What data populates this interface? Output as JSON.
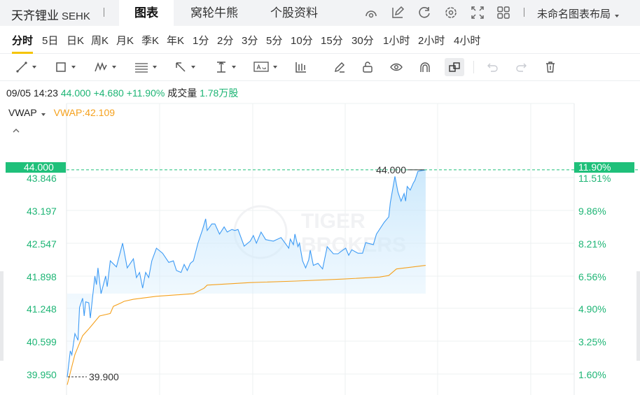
{
  "header": {
    "stock_name": "天齐锂业",
    "exchange": "SEHK",
    "tabs": [
      {
        "label": "图表",
        "active": true
      },
      {
        "label": "窝轮牛熊",
        "active": false
      },
      {
        "label": "个股资料",
        "active": false
      }
    ],
    "icons": [
      "speedometer-icon",
      "edit-icon",
      "refresh-icon",
      "settings-icon",
      "fullscreen-icon",
      "grid-layout-icon"
    ],
    "layout_label": "未命名图表布局"
  },
  "periods": [
    {
      "label": "分时",
      "active": true
    },
    {
      "label": "5日"
    },
    {
      "label": "日K"
    },
    {
      "label": "周K"
    },
    {
      "label": "月K"
    },
    {
      "label": "季K"
    },
    {
      "label": "年K"
    },
    {
      "label": "1分"
    },
    {
      "label": "2分"
    },
    {
      "label": "3分"
    },
    {
      "label": "5分"
    },
    {
      "label": "10分"
    },
    {
      "label": "15分"
    },
    {
      "label": "30分"
    },
    {
      "label": "1小时"
    },
    {
      "label": "2小时"
    },
    {
      "label": "4小时"
    }
  ],
  "toolbar": [
    "line-tool-icon",
    "rectangle-tool-icon",
    "pattern-tool-icon",
    "fibonacci-tool-icon",
    "arrow-tool-icon",
    "measure-tool-icon",
    "text-tool-icon",
    "candle-indicator-icon",
    "pencil-icon",
    "unlock-icon",
    "eye-icon",
    "magnet-icon",
    "overlap-icon",
    "undo-icon",
    "redo-icon",
    "trash-icon"
  ],
  "info": {
    "datetime": "09/05 14:23",
    "price": "44.000",
    "change": "+4.680",
    "change_pct": "+11.90%",
    "volume_label": "成交量",
    "volume": "1.78万股"
  },
  "indicator": {
    "name": "VWAP",
    "value_label": "VWAP:42.109"
  },
  "colors": {
    "up": "#1eb575",
    "price_line": "#3d9bf5",
    "vwap_line": "#f5a11d",
    "tag_bg": "#1fc07a"
  },
  "chart_data": {
    "type": "line",
    "price_axis": [
      "43.846",
      "43.197",
      "42.547",
      "41.898",
      "41.248",
      "40.599",
      "39.950"
    ],
    "pct_axis": [
      "11.51%",
      "9.86%",
      "8.21%",
      "6.56%",
      "4.90%",
      "3.25%",
      "1.60%"
    ],
    "current_price_tag": "44.000",
    "current_pct_tag": "11.90%",
    "high_label": "44.000",
    "low_label": "39.900",
    "ylim": [
      39.95,
      43.846
    ],
    "x_unit": "trading minutes since open",
    "xlim": [
      0,
      330
    ],
    "series": [
      {
        "name": "price",
        "points": [
          [
            0,
            39.9
          ],
          [
            2,
            40.42
          ],
          [
            3,
            40.34
          ],
          [
            5,
            40.76
          ],
          [
            7,
            40.63
          ],
          [
            8,
            41.28
          ],
          [
            10,
            41.46
          ],
          [
            11,
            41.11
          ],
          [
            12,
            41.39
          ],
          [
            14,
            41.37
          ],
          [
            15,
            41.07
          ],
          [
            18,
            41.9
          ],
          [
            19,
            41.73
          ],
          [
            20,
            42.06
          ],
          [
            22,
            41.55
          ],
          [
            25,
            41.9
          ],
          [
            26,
            41.69
          ],
          [
            28,
            42.2
          ],
          [
            32,
            42.08
          ],
          [
            36,
            42.55
          ],
          [
            39,
            42.06
          ],
          [
            43,
            42.24
          ],
          [
            45,
            41.87
          ],
          [
            47,
            41.97
          ],
          [
            49,
            41.66
          ],
          [
            51,
            41.97
          ],
          [
            53,
            41.87
          ],
          [
            55,
            42.2
          ],
          [
            58,
            42.45
          ],
          [
            62,
            42.35
          ],
          [
            66,
            42.17
          ],
          [
            69,
            42.2
          ],
          [
            71,
            42.01
          ],
          [
            74,
            41.97
          ],
          [
            76,
            42.13
          ],
          [
            78,
            42.01
          ],
          [
            80,
            42.15
          ],
          [
            82,
            42.2
          ],
          [
            85,
            42.55
          ],
          [
            88,
            42.82
          ],
          [
            90,
            43.03
          ],
          [
            91,
            42.8
          ],
          [
            94,
            42.93
          ],
          [
            96,
            42.93
          ],
          [
            99,
            42.73
          ],
          [
            102,
            42.87
          ],
          [
            104,
            42.77
          ],
          [
            107,
            42.82
          ],
          [
            109,
            42.8
          ],
          [
            111,
            42.82
          ],
          [
            115,
            42.49
          ],
          [
            119,
            42.59
          ],
          [
            121,
            42.7
          ],
          [
            123,
            42.55
          ],
          [
            126,
            42.77
          ],
          [
            129,
            42.62
          ],
          [
            134,
            42.59
          ],
          [
            139,
            42.66
          ],
          [
            144,
            42.45
          ],
          [
            145,
            42.63
          ],
          [
            147,
            42.52
          ],
          [
            148,
            42.73
          ],
          [
            150,
            42.48
          ],
          [
            151,
            42.55
          ],
          [
            153,
            42.2
          ],
          [
            155,
            42.06
          ],
          [
            157,
            42.22
          ],
          [
            158,
            42.41
          ],
          [
            160,
            42.11
          ],
          [
            163,
            42.15
          ],
          [
            166,
            42.04
          ],
          [
            169,
            42.48
          ],
          [
            173,
            42.34
          ],
          [
            176,
            42.34
          ],
          [
            179,
            42.41
          ],
          [
            181,
            42.45
          ],
          [
            183,
            42.31
          ],
          [
            185,
            42.42
          ],
          [
            189,
            42.35
          ],
          [
            192,
            42.35
          ],
          [
            194,
            42.56
          ],
          [
            199,
            42.52
          ],
          [
            201,
            42.73
          ],
          [
            206,
            42.96
          ],
          [
            209,
            43.07
          ],
          [
            210,
            43.35
          ],
          [
            213,
            43.87
          ],
          [
            215,
            43.56
          ],
          [
            217,
            43.38
          ],
          [
            219,
            43.53
          ],
          [
            220,
            43.38
          ],
          [
            221,
            43.67
          ],
          [
            223,
            43.6
          ],
          [
            225,
            43.74
          ],
          [
            226,
            43.79
          ],
          [
            228,
            43.97
          ],
          [
            233,
            44.0
          ]
        ]
      },
      {
        "name": "VWAP",
        "points": [
          [
            0,
            39.75
          ],
          [
            5,
            40.35
          ],
          [
            10,
            40.72
          ],
          [
            15,
            40.89
          ],
          [
            21,
            41.11
          ],
          [
            28,
            41.16
          ],
          [
            30,
            41.3
          ],
          [
            35,
            41.37
          ],
          [
            37,
            41.4
          ],
          [
            43,
            41.44
          ],
          [
            58,
            41.5
          ],
          [
            82,
            41.55
          ],
          [
            89,
            41.66
          ],
          [
            91,
            41.72
          ],
          [
            119,
            41.77
          ],
          [
            149,
            41.8
          ],
          [
            179,
            41.84
          ],
          [
            203,
            41.88
          ],
          [
            209,
            41.91
          ],
          [
            214,
            42.04
          ],
          [
            233,
            42.11
          ]
        ]
      }
    ],
    "grid": true
  },
  "watermark": "TIGER BROKERS"
}
